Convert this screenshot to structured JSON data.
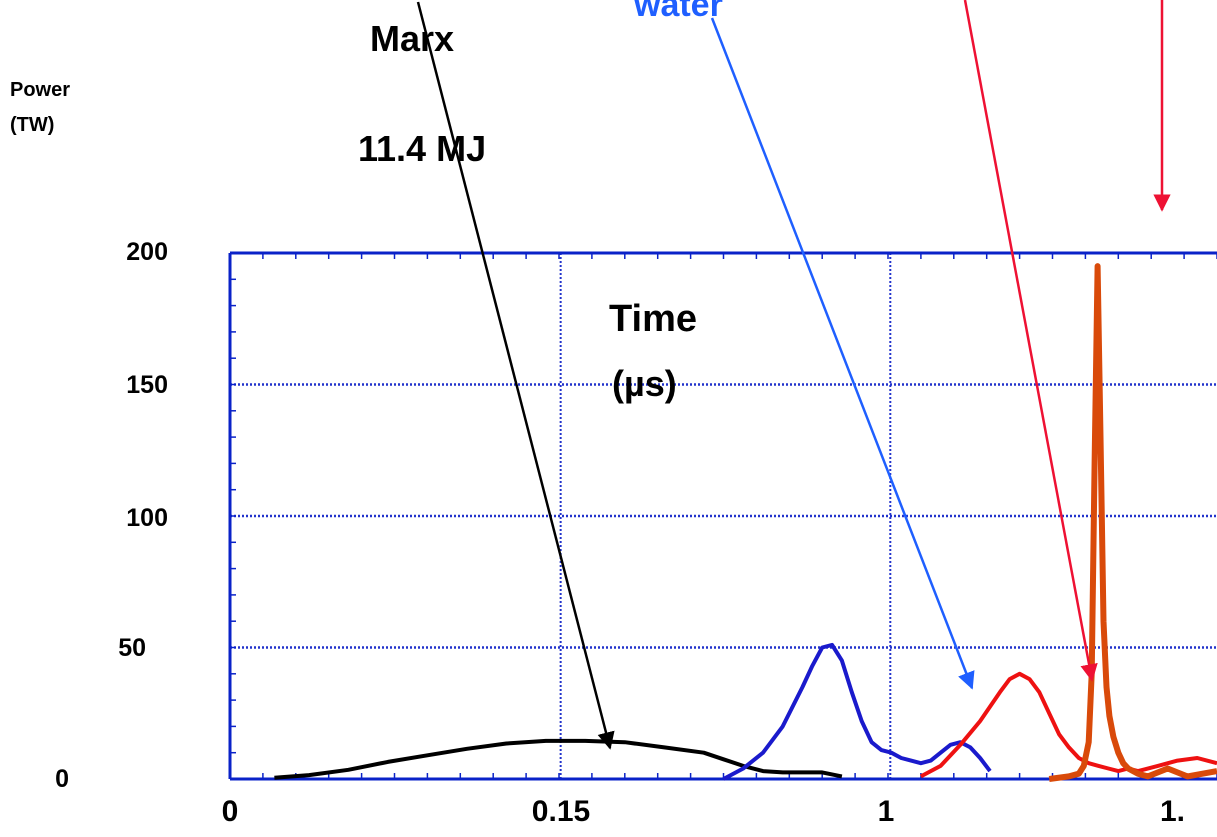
{
  "chart_data": {
    "type": "line",
    "ylabel_line1": "Power",
    "ylabel_line2": "(TW)",
    "xlabel_line1": "Time",
    "xlabel_line2": "(µs)",
    "ylim": [
      0,
      200
    ],
    "y_ticks": [
      "200",
      "150",
      "100",
      "50",
      "0"
    ],
    "x_ticks": [
      "0",
      "0.15",
      "1",
      "1."
    ],
    "grid": true,
    "colors": {
      "frame": "#0a22c8",
      "grid": "#2233cc",
      "marx": "#000000",
      "water": "#1a1acc",
      "red": "#ee1111",
      "orange": "#d94a0a",
      "water_arrow": "#1f5fff",
      "red_arrow": "#ee1133"
    },
    "series": [
      {
        "name": "Marx",
        "color": "#000000",
        "x": [
          0.045,
          0.08,
          0.12,
          0.16,
          0.2,
          0.24,
          0.28,
          0.32,
          0.36,
          0.4,
          0.44,
          0.48,
          0.5,
          0.52,
          0.54,
          0.56,
          0.58,
          0.6,
          0.62
        ],
        "y": [
          0.5,
          1.5,
          3.5,
          6.5,
          9,
          11.5,
          13.5,
          14.5,
          14.5,
          14,
          12,
          10,
          7.5,
          5,
          3,
          2.5,
          2.5,
          2.5,
          1
        ]
      },
      {
        "name": "Water",
        "color": "#1a1acc",
        "x": [
          0.5,
          0.52,
          0.54,
          0.56,
          0.58,
          0.59,
          0.6,
          0.61,
          0.62,
          0.63,
          0.64,
          0.65,
          0.66,
          0.67,
          0.68,
          0.69,
          0.7,
          0.71,
          0.72,
          0.73,
          0.74,
          0.75,
          0.76,
          0.77
        ],
        "y": [
          0,
          4,
          10,
          20,
          35,
          43,
          50,
          51,
          45,
          33,
          22,
          14,
          11,
          10,
          8,
          7,
          6,
          7,
          10,
          13,
          14,
          12,
          8,
          3
        ]
      },
      {
        "name": "",
        "color": "#ee1111",
        "x": [
          0.7,
          0.72,
          0.74,
          0.76,
          0.78,
          0.79,
          0.8,
          0.81,
          0.82,
          0.83,
          0.84,
          0.85,
          0.86,
          0.87,
          0.88,
          0.89,
          0.9,
          0.91,
          0.92,
          0.94,
          0.96,
          0.98,
          1.0
        ],
        "y": [
          1,
          5,
          13,
          22,
          33,
          38,
          40,
          38,
          33,
          25,
          17,
          12,
          8,
          6,
          5,
          4,
          3,
          4,
          3,
          5,
          7,
          8,
          6
        ]
      },
      {
        "name": "",
        "color": "#d94a0a",
        "x": [
          0.83,
          0.85,
          0.86,
          0.865,
          0.87,
          0.873,
          0.876,
          0.879,
          0.882,
          0.885,
          0.888,
          0.891,
          0.895,
          0.9,
          0.905,
          0.91,
          0.92,
          0.93,
          0.95,
          0.97,
          1.0
        ],
        "y": [
          0,
          1,
          2,
          5,
          14,
          40,
          120,
          195,
          130,
          60,
          35,
          24,
          16,
          10,
          6,
          4,
          2,
          1,
          4,
          1,
          3
        ]
      }
    ]
  },
  "annotations": {
    "marx_label": "Marx",
    "marx_energy": "11.4 MJ",
    "water_label": "water"
  }
}
